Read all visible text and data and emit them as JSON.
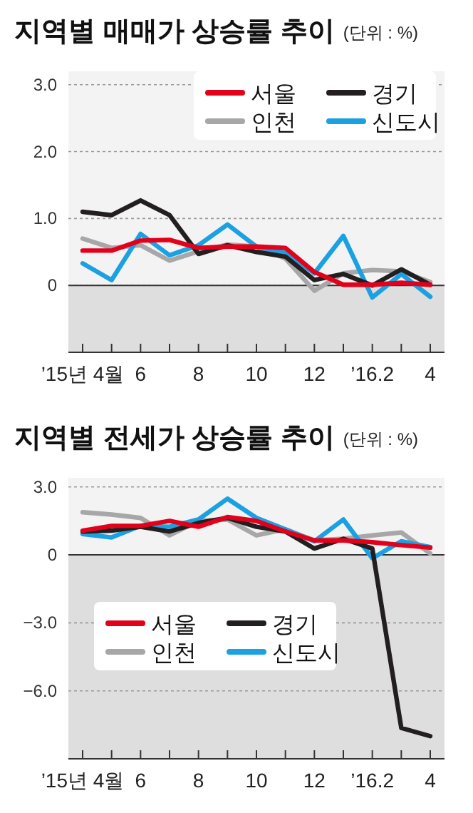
{
  "chart_data": [
    {
      "type": "line",
      "title": "지역별 매매가 상승률 추이",
      "subtitle": "(단위 : %)",
      "categories": [
        "’15년 4월",
        null,
        "6",
        null,
        "8",
        null,
        "10",
        null,
        "12",
        null,
        "’16.2",
        null,
        "4"
      ],
      "ylim": [
        -1,
        3.2
      ],
      "yticks": [
        0,
        {
          "value": 1,
          "label": "1.0"
        },
        {
          "value": 2,
          "label": "2.0"
        },
        {
          "value": 3,
          "label": "3.0"
        }
      ],
      "grid": "y",
      "legend": "top right",
      "line_style": "solid",
      "marker": "none",
      "ref_lines": [
        {
          "axis": "y",
          "value": 0,
          "color": "#333333"
        }
      ],
      "bands": [
        {
          "axis": "y",
          "from": -1,
          "to": 0,
          "color": "#dedede"
        }
      ],
      "series": [
        {
          "name": "서울",
          "color": "#e3001b",
          "values": [
            0.52,
            0.52,
            0.67,
            0.68,
            0.56,
            0.58,
            0.58,
            0.56,
            0.2,
            0.01,
            0.01,
            0.04,
            0.01
          ]
        },
        {
          "name": "경기",
          "color": "#231f20",
          "values": [
            1.1,
            1.05,
            1.27,
            1.05,
            0.47,
            0.6,
            0.5,
            0.43,
            0.08,
            0.17,
            0,
            0.24,
            0.01
          ]
        },
        {
          "name": "인천",
          "color": "#a7a7a7",
          "values": [
            0.7,
            0.56,
            0.6,
            0.37,
            0.51,
            0.61,
            0.58,
            0.4,
            -0.08,
            0.18,
            0.23,
            0.21,
            0.05
          ]
        },
        {
          "name": "신도시",
          "color": "#1ba1e2",
          "values": [
            0.33,
            0.08,
            0.77,
            0.45,
            0.6,
            0.91,
            0.58,
            0.49,
            0.18,
            0.74,
            -0.18,
            0.17,
            -0.17
          ]
        }
      ]
    },
    {
      "type": "line",
      "title": "지역별 전세가 상승률 추이",
      "subtitle": "(단위 : %)",
      "categories": [
        "’15년 4월",
        null,
        "6",
        null,
        "8",
        null,
        "10",
        null,
        "12",
        null,
        "’16.2",
        null,
        "4"
      ],
      "ylim": [
        -9,
        3.4
      ],
      "yticks": [
        {
          "value": -6,
          "label": "−6.0"
        },
        {
          "value": -3,
          "label": "−3.0"
        },
        0,
        {
          "value": 3,
          "label": "3.0"
        }
      ],
      "grid": "y",
      "legend": "bottom left",
      "line_style": "solid",
      "marker": "none",
      "ref_lines": [
        {
          "axis": "y",
          "value": 0,
          "color": "#333333"
        }
      ],
      "bands": [
        {
          "axis": "y",
          "from": -9,
          "to": 0,
          "color": "#dedede"
        }
      ],
      "series": [
        {
          "name": "서울",
          "color": "#e3001b",
          "values": [
            1.07,
            1.28,
            1.28,
            1.5,
            1.24,
            1.67,
            1.5,
            1.03,
            0.64,
            0.64,
            0.56,
            0.43,
            0.32
          ]
        },
        {
          "name": "경기",
          "color": "#231f20",
          "values": [
            1.03,
            1.07,
            1.24,
            1.03,
            1.41,
            1.63,
            1.24,
            1.03,
            0.28,
            0.71,
            0.28,
            -7.64,
            -8.0
          ]
        },
        {
          "name": "인천",
          "color": "#a7a7a7",
          "values": [
            1.88,
            1.78,
            1.63,
            0.86,
            1.5,
            1.56,
            0.86,
            1.13,
            0.64,
            0.71,
            0.86,
            0.99,
            0.06
          ]
        },
        {
          "name": "신도시",
          "color": "#1ba1e2",
          "values": [
            0.92,
            0.77,
            1.28,
            1.24,
            1.56,
            2.48,
            1.63,
            1.13,
            0.6,
            1.56,
            -0.15,
            0.6,
            0.34
          ]
        }
      ]
    }
  ]
}
